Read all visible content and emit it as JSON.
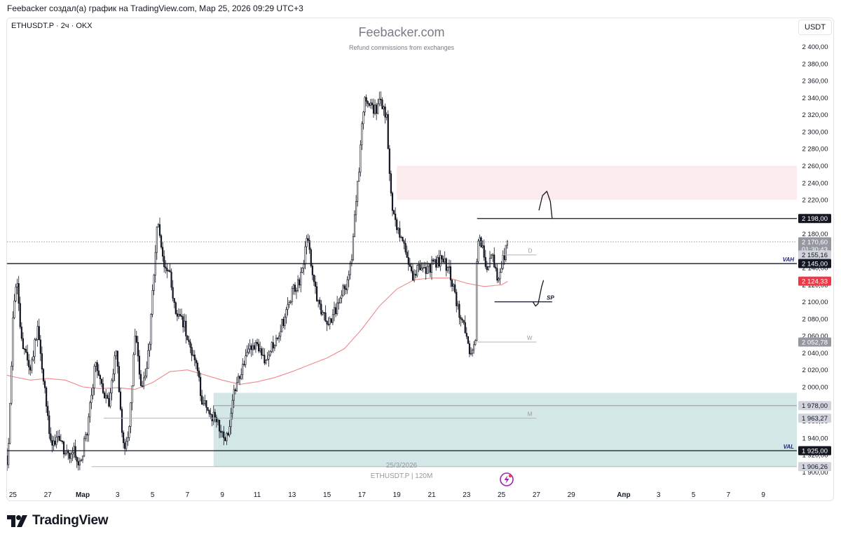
{
  "header": {
    "text": "Feebacker создал(а) график на TradingView.com, Мар 25, 2026 09:29 UTC+3"
  },
  "ticker": "ETHUSDT.P · 2ч · OKX",
  "watermark": {
    "title": "Feebacker.com",
    "subtitle": "Refund commissions from exchanges"
  },
  "currency_button": "USDT",
  "footer": {
    "brand": "TradingView",
    "logo_icon": "tradingview-logo-icon"
  },
  "colors": {
    "candle": "#131722",
    "ma": "#f0888c",
    "resistance_zone": "#fcebec",
    "support_zone": "#d3e7e6",
    "price_red": "#f23645",
    "label_gray": "#787b86",
    "level_black": "#131722"
  },
  "chart_data": {
    "type": "candlestick",
    "symbol": "ETHUSDT.P",
    "interval": "2ч",
    "exchange": "OKX",
    "y_axis": {
      "range": [
        1895,
        2410
      ],
      "ticks": [
        1900,
        1920,
        1940,
        1960,
        1980,
        2000,
        2020,
        2040,
        2060,
        2080,
        2100,
        2120,
        2140,
        2160,
        2180,
        2200,
        2220,
        2240,
        2260,
        2280,
        2300,
        2320,
        2340,
        2360,
        2380,
        2400
      ],
      "tick_labels": [
        "1 900,00",
        "1 920,00",
        "1 940,00",
        "1 960,00",
        "1 980,00",
        "2 000,00",
        "2 020,00",
        "2 040,00",
        "2 060,00",
        "2 080,00",
        "2 100,00",
        "2 120,00",
        "2 140,00",
        "2 160,00",
        "2 180,00",
        "2 200,00",
        "2 220,00",
        "2 240,00",
        "2 260,00",
        "2 280,00",
        "2 300,00",
        "2 320,00",
        "2 340,00",
        "2 360,00",
        "2 380,00",
        "2 400,00"
      ]
    },
    "x_axis": {
      "range_days": [
        -5,
        58
      ],
      "ticks": [
        {
          "day": -4,
          "label": "25"
        },
        {
          "day": -2,
          "label": "27"
        },
        {
          "day": 0,
          "label": "Мар",
          "bold": true
        },
        {
          "day": 2,
          "label": "3"
        },
        {
          "day": 4,
          "label": "5"
        },
        {
          "day": 6,
          "label": "7"
        },
        {
          "day": 8,
          "label": "9"
        },
        {
          "day": 10,
          "label": "11"
        },
        {
          "day": 12,
          "label": "13"
        },
        {
          "day": 14,
          "label": "15"
        },
        {
          "day": 16,
          "label": "17"
        },
        {
          "day": 18,
          "label": "19"
        },
        {
          "day": 20,
          "label": "21"
        },
        {
          "day": 22,
          "label": "23"
        },
        {
          "day": 24,
          "label": "25"
        },
        {
          "day": 26,
          "label": "27"
        },
        {
          "day": 28,
          "label": "29"
        },
        {
          "day": 31,
          "label": "Апр",
          "bold": true
        },
        {
          "day": 33,
          "label": "3"
        },
        {
          "day": 35,
          "label": "5"
        },
        {
          "day": 37,
          "label": "7"
        },
        {
          "day": 39,
          "label": "9"
        }
      ]
    },
    "price_path": [
      {
        "d": -5.0,
        "p": 2012
      },
      {
        "d": -4.6,
        "p": 1930
      },
      {
        "d": -4.3,
        "p": 1905
      },
      {
        "d": -4.0,
        "p": 2080
      },
      {
        "d": -3.8,
        "p": 2128
      },
      {
        "d": -3.5,
        "p": 2050
      },
      {
        "d": -3.0,
        "p": 2020
      },
      {
        "d": -2.6,
        "p": 2070
      },
      {
        "d": -2.2,
        "p": 2005
      },
      {
        "d": -1.8,
        "p": 1930
      },
      {
        "d": -1.4,
        "p": 1945
      },
      {
        "d": -1.0,
        "p": 1918
      },
      {
        "d": -0.5,
        "p": 1925
      },
      {
        "d": -0.2,
        "p": 1905
      },
      {
        "d": 0.3,
        "p": 1955
      },
      {
        "d": 0.7,
        "p": 2025
      },
      {
        "d": 1.1,
        "p": 2005
      },
      {
        "d": 1.5,
        "p": 1975
      },
      {
        "d": 1.9,
        "p": 2050
      },
      {
        "d": 2.3,
        "p": 1930
      },
      {
        "d": 2.6,
        "p": 1935
      },
      {
        "d": 3.0,
        "p": 2060
      },
      {
        "d": 3.4,
        "p": 1992
      },
      {
        "d": 3.8,
        "p": 2045
      },
      {
        "d": 4.1,
        "p": 2140
      },
      {
        "d": 4.3,
        "p": 2195
      },
      {
        "d": 4.6,
        "p": 2145
      },
      {
        "d": 5.0,
        "p": 2130
      },
      {
        "d": 5.4,
        "p": 2080
      },
      {
        "d": 5.8,
        "p": 2075
      },
      {
        "d": 6.2,
        "p": 2040
      },
      {
        "d": 6.5,
        "p": 2030
      },
      {
        "d": 6.8,
        "p": 1985
      },
      {
        "d": 7.3,
        "p": 1970
      },
      {
        "d": 7.8,
        "p": 1955
      },
      {
        "d": 8.1,
        "p": 1937
      },
      {
        "d": 8.4,
        "p": 1952
      },
      {
        "d": 8.6,
        "p": 1990
      },
      {
        "d": 9.0,
        "p": 2010
      },
      {
        "d": 9.5,
        "p": 2040
      },
      {
        "d": 10.0,
        "p": 2050
      },
      {
        "d": 10.5,
        "p": 2032
      },
      {
        "d": 11.0,
        "p": 2055
      },
      {
        "d": 11.5,
        "p": 2078
      },
      {
        "d": 12.0,
        "p": 2110
      },
      {
        "d": 12.5,
        "p": 2128
      },
      {
        "d": 12.9,
        "p": 2180
      },
      {
        "d": 13.2,
        "p": 2125
      },
      {
        "d": 13.6,
        "p": 2092
      },
      {
        "d": 14.0,
        "p": 2075
      },
      {
        "d": 14.4,
        "p": 2086
      },
      {
        "d": 14.8,
        "p": 2110
      },
      {
        "d": 15.2,
        "p": 2125
      },
      {
        "d": 15.4,
        "p": 2150
      },
      {
        "d": 15.6,
        "p": 2210
      },
      {
        "d": 15.8,
        "p": 2245
      },
      {
        "d": 16.0,
        "p": 2310
      },
      {
        "d": 16.2,
        "p": 2345
      },
      {
        "d": 16.5,
        "p": 2330
      },
      {
        "d": 16.8,
        "p": 2325
      },
      {
        "d": 17.1,
        "p": 2335
      },
      {
        "d": 17.4,
        "p": 2320
      },
      {
        "d": 17.6,
        "p": 2250
      },
      {
        "d": 17.8,
        "p": 2200
      },
      {
        "d": 18.0,
        "p": 2185
      },
      {
        "d": 18.3,
        "p": 2170
      },
      {
        "d": 18.6,
        "p": 2150
      },
      {
        "d": 18.9,
        "p": 2130
      },
      {
        "d": 19.3,
        "p": 2145
      },
      {
        "d": 19.7,
        "p": 2135
      },
      {
        "d": 20.1,
        "p": 2145
      },
      {
        "d": 20.6,
        "p": 2148
      },
      {
        "d": 21.0,
        "p": 2140
      },
      {
        "d": 21.3,
        "p": 2110
      },
      {
        "d": 21.6,
        "p": 2085
      },
      {
        "d": 21.9,
        "p": 2065
      },
      {
        "d": 22.2,
        "p": 2040
      },
      {
        "d": 22.5,
        "p": 2055
      },
      {
        "d": 22.6,
        "p": 2160
      },
      {
        "d": 22.8,
        "p": 2175
      },
      {
        "d": 23.1,
        "p": 2140
      },
      {
        "d": 23.5,
        "p": 2155
      },
      {
        "d": 23.8,
        "p": 2125
      },
      {
        "d": 24.1,
        "p": 2150
      },
      {
        "d": 24.35,
        "p": 2168
      }
    ],
    "moving_average": [
      {
        "d": -5.0,
        "p": 2017
      },
      {
        "d": -4.0,
        "p": 2012
      },
      {
        "d": -3.0,
        "p": 2008
      },
      {
        "d": -2.0,
        "p": 2010
      },
      {
        "d": -1.0,
        "p": 2008
      },
      {
        "d": 0.0,
        "p": 2000
      },
      {
        "d": 1.0,
        "p": 1998
      },
      {
        "d": 2.0,
        "p": 1999
      },
      {
        "d": 3.0,
        "p": 1997
      },
      {
        "d": 4.0,
        "p": 2005
      },
      {
        "d": 5.0,
        "p": 2018
      },
      {
        "d": 6.0,
        "p": 2020
      },
      {
        "d": 7.0,
        "p": 2014
      },
      {
        "d": 8.0,
        "p": 2008
      },
      {
        "d": 9.0,
        "p": 2003
      },
      {
        "d": 10.0,
        "p": 2006
      },
      {
        "d": 11.0,
        "p": 2011
      },
      {
        "d": 12.0,
        "p": 2018
      },
      {
        "d": 13.0,
        "p": 2026
      },
      {
        "d": 14.0,
        "p": 2034
      },
      {
        "d": 15.0,
        "p": 2045
      },
      {
        "d": 16.0,
        "p": 2068
      },
      {
        "d": 17.0,
        "p": 2095
      },
      {
        "d": 18.0,
        "p": 2115
      },
      {
        "d": 19.0,
        "p": 2126
      },
      {
        "d": 20.0,
        "p": 2128
      },
      {
        "d": 21.0,
        "p": 2128
      },
      {
        "d": 22.0,
        "p": 2122
      },
      {
        "d": 23.0,
        "p": 2118
      },
      {
        "d": 24.0,
        "p": 2120
      },
      {
        "d": 24.35,
        "p": 2124
      }
    ],
    "zones": [
      {
        "name": "resistance-zone",
        "from_day": 18.0,
        "to_day": 58,
        "low": 2220,
        "high": 2260
      },
      {
        "name": "support-zone",
        "from_day": 7.5,
        "to_day": 58,
        "low": 1906.26,
        "high": 1993
      }
    ],
    "levels": [
      {
        "name": "level-2198",
        "price": 2198,
        "from_day": 22.6,
        "to_day": 58,
        "color": "#131722",
        "width": 1.3,
        "tag": "2 198,00"
      },
      {
        "name": "level-2170-current",
        "price": 2170.6,
        "from_day": -5,
        "to_day": 58,
        "dotted": true,
        "color": "#9598a1",
        "width": 1,
        "tag": "2 170,60",
        "tag_sub": "01:30:43",
        "tag_style": "gray"
      },
      {
        "name": "level-d",
        "price": 2155.16,
        "from_day": 24.0,
        "to_day": 26.0,
        "color": "#b2b5be",
        "width": 1,
        "label": "D",
        "tag": "2 155,16",
        "tag_style": "light"
      },
      {
        "name": "level-vah",
        "price": 2145,
        "from_day": -5,
        "to_day": 58,
        "color": "#131722",
        "width": 1.3,
        "label": "VAH",
        "tag": "2 145,00"
      },
      {
        "name": "level-ma",
        "price": 2124.33,
        "tag": "2 124,33",
        "tag_style": "red",
        "tag_only": true
      },
      {
        "name": "level-sp",
        "price": 2100,
        "from_day": 23.6,
        "to_day": 26.9,
        "color": "#131722",
        "width": 1.3,
        "label": "SP"
      },
      {
        "name": "level-w",
        "price": 2052.78,
        "from_day": 22.6,
        "to_day": 26.0,
        "color": "#b2b5be",
        "width": 1,
        "label": "W",
        "tag": "2 052,78",
        "tag_style": "gray"
      },
      {
        "name": "level-1978",
        "price": 1978,
        "from_day": 7.5,
        "to_day": 58,
        "color": "#9598a1",
        "width": 1,
        "tag": "1 978,00",
        "tag_style": "light"
      },
      {
        "name": "level-m",
        "price": 1963.27,
        "from_day": 1.2,
        "to_day": 26.0,
        "color": "#b2b5be",
        "width": 1,
        "label": "M",
        "tag": "1 963,27",
        "tag_style": "light"
      },
      {
        "name": "level-val",
        "price": 1925,
        "from_day": -5,
        "to_day": 58,
        "color": "#131722",
        "width": 1.3,
        "label": "VAL",
        "tag": "1 925,00"
      },
      {
        "name": "level-1906",
        "price": 1906.26,
        "from_day": 0.5,
        "to_day": 58,
        "color": "#b2b5be",
        "width": 1,
        "tag": "1 906,26",
        "tag_style": "light"
      }
    ],
    "projections": [
      {
        "name": "projection-arc-top",
        "points": [
          {
            "d": 26.15,
            "p": 2208
          },
          {
            "d": 26.35,
            "p": 2225
          },
          {
            "d": 26.6,
            "p": 2230
          },
          {
            "d": 26.8,
            "p": 2218
          },
          {
            "d": 26.9,
            "p": 2198
          }
        ]
      },
      {
        "name": "projection-curve-sp",
        "points": [
          {
            "d": 25.8,
            "p": 2100
          },
          {
            "d": 25.95,
            "p": 2095
          },
          {
            "d": 26.1,
            "p": 2098
          },
          {
            "d": 26.3,
            "p": 2118
          },
          {
            "d": 26.4,
            "p": 2125
          }
        ]
      }
    ],
    "annotations": {
      "date_label": "25/3/2026",
      "series_label": "ETHUSDT.P | 120M",
      "replay_icon": "lightning-replay-icon"
    }
  }
}
